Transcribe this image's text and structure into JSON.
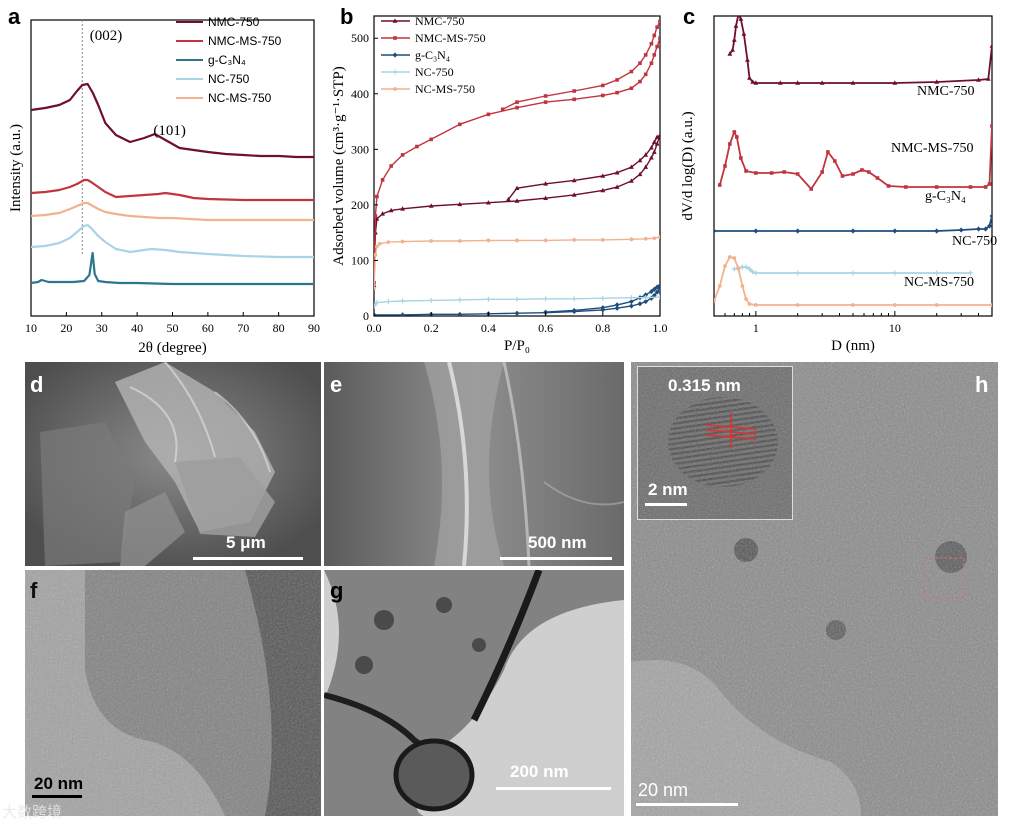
{
  "panels": {
    "a": {
      "label": "a"
    },
    "b": {
      "label": "b"
    },
    "c": {
      "label": "c"
    },
    "d": {
      "label": "d",
      "scalebar": "5 μm"
    },
    "e": {
      "label": "e",
      "scalebar": "500 nm"
    },
    "f": {
      "label": "f",
      "scalebar": "20 nm"
    },
    "g": {
      "label": "g",
      "scalebar": "200 nm"
    },
    "h": {
      "label": "h",
      "scalebar": "20 nm",
      "inset_scalebar": "2 nm",
      "inset_annotation": "0.315 nm"
    }
  },
  "watermark": "大数跨境",
  "colors": {
    "NMC-750": "#6e0f2c",
    "NMC-MS-750": "#c0353f",
    "g-C3N4": "#1d4e7e",
    "g-C3N4-xrd": "#2e7591",
    "NC-750": "#a9d3e6",
    "NC-MS-750": "#f2b28f"
  },
  "chart_data": [
    {
      "type": "line",
      "panel": "a",
      "title": "",
      "xlabel": "2θ (degree)",
      "ylabel": "Intensity (a.u.)",
      "xlim": [
        10,
        90
      ],
      "xticks": [
        10,
        20,
        30,
        40,
        50,
        60,
        70,
        80,
        90
      ],
      "y_ticks_shown": false,
      "legend": {
        "placement": "top-right",
        "entries": [
          "NMC-750",
          "NMC-MS-750",
          "g-C₃N₄",
          "NC-750",
          "NC-MS-750"
        ]
      },
      "annotations": [
        {
          "text": "(002)",
          "x": 30
        },
        {
          "text": "(101)",
          "x": 48
        }
      ],
      "reference_line_x": 24.5,
      "series": [
        {
          "name": "NMC-750",
          "x": [
            10,
            14,
            18,
            21,
            23,
            24.5,
            26,
            27.5,
            29,
            31,
            34,
            38,
            42,
            45,
            48,
            52,
            56,
            60,
            65,
            70,
            75,
            80,
            85,
            90
          ],
          "y": [
            90,
            88,
            85,
            80,
            71,
            65,
            64,
            73,
            85,
            103,
            115,
            122,
            118,
            114,
            120,
            128,
            130,
            132,
            134,
            135,
            136,
            136,
            137,
            137
          ]
        },
        {
          "name": "NMC-MS-750",
          "x": [
            10,
            14,
            18,
            21,
            23,
            25,
            26,
            27,
            29,
            31,
            34,
            38,
            42,
            46,
            48,
            52,
            56,
            60,
            70,
            80,
            90
          ],
          "y": [
            173,
            172,
            170,
            167,
            164,
            160,
            160,
            162,
            167,
            172,
            177,
            176,
            175,
            174,
            173,
            175,
            178,
            179,
            180,
            180,
            180
          ]
        },
        {
          "name": "g-C₃N₄",
          "x": [
            10,
            12,
            13,
            15,
            18,
            22,
            25,
            26.5,
            27.4,
            28,
            29,
            31,
            35,
            40,
            50,
            60,
            70,
            80,
            90
          ],
          "y": [
            263,
            262,
            260,
            262,
            262,
            262,
            261,
            255,
            233,
            254,
            261,
            262,
            263,
            263,
            264,
            264,
            264,
            264,
            264
          ]
        },
        {
          "name": "NC-750",
          "x": [
            10,
            14,
            18,
            21,
            23,
            25,
            26,
            27,
            29,
            31,
            34,
            38,
            42,
            44,
            48,
            52,
            56,
            60,
            70,
            80,
            90
          ],
          "y": [
            227,
            226,
            223,
            218,
            212,
            206,
            205,
            208,
            216,
            222,
            229,
            232,
            230,
            229,
            230,
            232,
            233,
            234,
            236,
            237,
            237
          ]
        },
        {
          "name": "NC-MS-750",
          "x": [
            10,
            14,
            18,
            21,
            23,
            25,
            26,
            27,
            29,
            31,
            34,
            38,
            42,
            46,
            50,
            55,
            60,
            70,
            80,
            90
          ],
          "y": [
            196,
            195,
            193,
            189,
            186,
            183,
            183,
            185,
            189,
            192,
            194,
            196,
            197,
            198,
            198,
            199,
            200,
            200,
            200,
            200
          ]
        }
      ],
      "y_units": "offset intensity (a.u., inverted)"
    },
    {
      "type": "line",
      "panel": "b",
      "title": "",
      "xlabel": "P/P₀",
      "ylabel": "Adsorbed volume (cm³·g⁻¹·STP)",
      "xlim": [
        0.0,
        1.0
      ],
      "ylim": [
        0,
        540
      ],
      "xticks": [
        0.0,
        0.2,
        0.4,
        0.6,
        0.8,
        1.0
      ],
      "yticks": [
        0,
        100,
        200,
        300,
        400,
        500
      ],
      "legend": {
        "placement": "top-left",
        "entries": [
          "NMC-750",
          "NMC-MS-750",
          "g-C₃N₄",
          "NC-750",
          "NC-MS-750"
        ]
      },
      "series": [
        {
          "name": "NMC-750",
          "branch": "adsorption",
          "x": [
            0,
            0.005,
            0.01,
            0.03,
            0.06,
            0.1,
            0.2,
            0.3,
            0.4,
            0.5,
            0.6,
            0.7,
            0.8,
            0.85,
            0.9,
            0.93,
            0.95,
            0.97,
            0.98,
            0.99,
            1.0
          ],
          "y": [
            55,
            150,
            175,
            184,
            190,
            193,
            198,
            201,
            204,
            207,
            212,
            218,
            226,
            232,
            243,
            255,
            268,
            285,
            295,
            310,
            325
          ]
        },
        {
          "name": "NMC-750",
          "branch": "desorption",
          "x": [
            1.0,
            0.99,
            0.98,
            0.97,
            0.95,
            0.93,
            0.9,
            0.85,
            0.8,
            0.7,
            0.6,
            0.5,
            0.47
          ],
          "y": [
            325,
            322,
            313,
            303,
            290,
            280,
            268,
            258,
            252,
            244,
            238,
            230,
            210
          ]
        },
        {
          "name": "NMC-MS-750",
          "branch": "adsorption",
          "x": [
            0,
            0.005,
            0.01,
            0.03,
            0.06,
            0.1,
            0.15,
            0.2,
            0.3,
            0.4,
            0.5,
            0.6,
            0.7,
            0.8,
            0.85,
            0.9,
            0.93,
            0.95,
            0.97,
            0.98,
            0.99,
            1.0
          ],
          "y": [
            60,
            180,
            215,
            245,
            270,
            290,
            305,
            318,
            345,
            363,
            375,
            385,
            390,
            397,
            402,
            410,
            422,
            435,
            455,
            470,
            485,
            500
          ]
        },
        {
          "name": "NMC-MS-750",
          "branch": "desorption",
          "x": [
            1.0,
            0.99,
            0.98,
            0.97,
            0.95,
            0.93,
            0.9,
            0.85,
            0.8,
            0.7,
            0.6,
            0.5,
            0.45
          ],
          "y": [
            530,
            520,
            505,
            490,
            470,
            455,
            440,
            425,
            415,
            405,
            396,
            385,
            372
          ]
        },
        {
          "name": "g-C₃N₄",
          "branch": "adsorption",
          "x": [
            0,
            0.1,
            0.2,
            0.3,
            0.4,
            0.5,
            0.6,
            0.7,
            0.8,
            0.85,
            0.9,
            0.93,
            0.95,
            0.97,
            0.98,
            0.99,
            1.0
          ],
          "y": [
            2,
            2,
            3,
            3,
            4,
            5,
            6,
            8,
            11,
            14,
            18,
            22,
            26,
            32,
            37,
            43,
            50
          ]
        },
        {
          "name": "g-C₃N₄",
          "branch": "desorption",
          "x": [
            1.0,
            0.99,
            0.98,
            0.97,
            0.95,
            0.93,
            0.9,
            0.85,
            0.8,
            0.7,
            0.6
          ],
          "y": [
            55,
            52,
            48,
            44,
            38,
            33,
            26,
            20,
            15,
            10,
            7
          ]
        },
        {
          "name": "NC-750",
          "x": [
            0,
            0.01,
            0.05,
            0.1,
            0.2,
            0.3,
            0.4,
            0.5,
            0.6,
            0.7,
            0.8,
            0.9,
            0.95,
            1.0
          ],
          "y": [
            18,
            24,
            26,
            27,
            28,
            29,
            30,
            30,
            31,
            31,
            32,
            33,
            33,
            34
          ]
        },
        {
          "name": "NC-MS-750",
          "x": [
            0,
            0.005,
            0.01,
            0.02,
            0.05,
            0.1,
            0.2,
            0.3,
            0.4,
            0.5,
            0.6,
            0.7,
            0.8,
            0.9,
            0.95,
            0.98,
            1.0
          ],
          "y": [
            50,
            110,
            125,
            130,
            133,
            134,
            135,
            135,
            136,
            136,
            136,
            137,
            137,
            138,
            139,
            140,
            142
          ]
        }
      ]
    },
    {
      "type": "line",
      "panel": "c",
      "title": "",
      "xlabel": "D (nm)",
      "ylabel": "dV/d log(D) (a.u.)",
      "x_scale": "log",
      "xlim": [
        0.5,
        50
      ],
      "xticks": [
        1,
        10
      ],
      "y_ticks_shown": false,
      "series_labels_on_plot": [
        "NMC-750",
        "NMC-MS-750",
        "g-C₃N₄",
        "NC-750",
        "NC-MS-750"
      ],
      "series": [
        {
          "name": "NMC-750",
          "x": [
            0.65,
            0.68,
            0.7,
            0.72,
            0.75,
            0.78,
            0.82,
            0.87,
            0.9,
            0.95,
            1.0,
            1.5,
            2,
            3,
            5,
            10,
            20,
            40,
            47,
            50
          ],
          "y": [
            38,
            34,
            24,
            10,
            -2,
            3,
            18,
            44,
            62,
            66,
            67,
            67,
            67,
            67,
            67,
            67,
            66,
            64,
            63,
            30
          ]
        },
        {
          "name": "NMC-MS-750",
          "x": [
            0.55,
            0.6,
            0.65,
            0.7,
            0.73,
            0.78,
            0.85,
            1.0,
            1.3,
            1.6,
            2.0,
            2.5,
            3.0,
            3.3,
            3.7,
            4.2,
            5,
            5.8,
            6.5,
            7.5,
            9,
            12,
            20,
            35,
            45,
            48,
            50
          ],
          "y": [
            169,
            150,
            128,
            116,
            121,
            142,
            155,
            157,
            157,
            156,
            158,
            173,
            156,
            136,
            145,
            160,
            158,
            154,
            156,
            162,
            170,
            171,
            171,
            171,
            171,
            168,
            110
          ]
        },
        {
          "name": "g-C₃N₄",
          "x": [
            0.5,
            1,
            2,
            5,
            10,
            20,
            30,
            40,
            45,
            48,
            50
          ],
          "y": [
            215,
            215,
            215,
            215,
            215,
            215,
            214,
            213,
            213,
            210,
            200
          ]
        },
        {
          "name": "NC-750",
          "x": [
            0.7,
            0.75,
            0.8,
            0.85,
            0.9,
            0.95,
            1.0,
            2,
            5,
            10,
            20,
            35
          ],
          "y": [
            253,
            252,
            251,
            251,
            253,
            256,
            257,
            257,
            257,
            257,
            257,
            257
          ]
        },
        {
          "name": "NC-MS-750",
          "x": [
            0.5,
            0.55,
            0.6,
            0.65,
            0.7,
            0.75,
            0.8,
            0.85,
            0.9,
            1.0,
            2,
            5,
            10,
            20,
            50
          ],
          "y": [
            285,
            270,
            250,
            241,
            242,
            253,
            270,
            283,
            288,
            289,
            289,
            289,
            289,
            289,
            289
          ]
        }
      ],
      "y_units": "offset (a.u., inverted)"
    }
  ]
}
